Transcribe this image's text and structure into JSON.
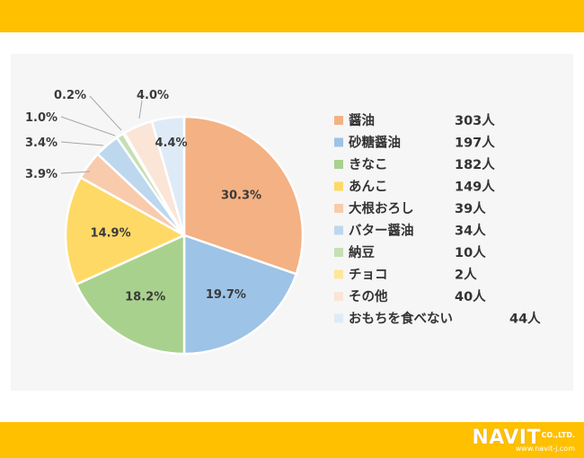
{
  "chart_data": {
    "type": "pie",
    "slices": [
      {
        "label": "醤油",
        "count": "303人",
        "percent": 30.3,
        "percent_label": "30.3%",
        "color": "#F4B183"
      },
      {
        "label": "砂糖醤油",
        "count": "197人",
        "percent": 19.7,
        "percent_label": "19.7%",
        "color": "#9DC3E6"
      },
      {
        "label": "きなこ",
        "count": "182人",
        "percent": 18.2,
        "percent_label": "18.2%",
        "color": "#A9D18E"
      },
      {
        "label": "あんこ",
        "count": "149人",
        "percent": 14.9,
        "percent_label": "14.9%",
        "color": "#FFD966"
      },
      {
        "label": "大根おろし",
        "count": "39人",
        "percent": 3.9,
        "percent_label": "3.9%",
        "color": "#F8CBAD"
      },
      {
        "label": "バター醤油",
        "count": "34人",
        "percent": 3.4,
        "percent_label": "3.4%",
        "color": "#BDD7EE"
      },
      {
        "label": "納豆",
        "count": "10人",
        "percent": 1.0,
        "percent_label": "1.0%",
        "color": "#C5E0B4"
      },
      {
        "label": "チョコ",
        "count": "2人",
        "percent": 0.2,
        "percent_label": "0.2%",
        "color": "#FFE699"
      },
      {
        "label": "その他",
        "count": "40人",
        "percent": 4.0,
        "percent_label": "4.0%",
        "color": "#FBE5D6"
      },
      {
        "label": "おもちを食べない",
        "count": "44人",
        "percent": 4.4,
        "percent_label": "4.4%",
        "color": "#DEEBF7"
      }
    ],
    "legend_position": "right",
    "label_mode": "inside for large slices, outside with leader lines for small slices"
  },
  "branding": {
    "logo": "NAVIT",
    "logo_suffix": "CO.,LTD.",
    "url": "www.navit-j.com"
  },
  "colors": {
    "banner": "#FFC000",
    "panel": "#F6F6F6"
  }
}
